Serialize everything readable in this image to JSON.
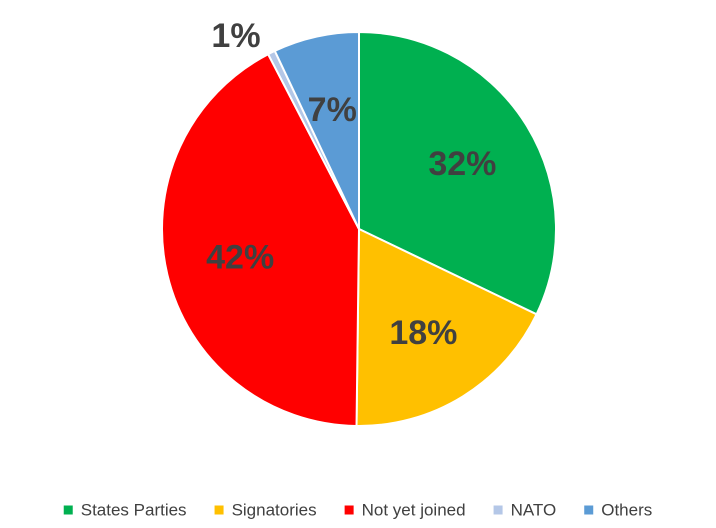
{
  "chart_data": {
    "type": "pie",
    "title": "",
    "slices": [
      {
        "label": "States Parties",
        "value": 32,
        "display": "32%",
        "color": "#00B050"
      },
      {
        "label": "Signatories",
        "value": 18,
        "display": "18%",
        "color": "#FFC000"
      },
      {
        "label": "Not yet joined",
        "value": 42,
        "display": "42%",
        "color": "#FF0000"
      },
      {
        "label": "NATO",
        "value": 0.6,
        "display": "1%",
        "color": "#B4C7E7"
      },
      {
        "label": "Others",
        "value": 7,
        "display": "7%",
        "color": "#5B9BD5"
      }
    ],
    "legend_position": "bottom",
    "start_angle_deg": 0,
    "direction": "clockwise"
  }
}
